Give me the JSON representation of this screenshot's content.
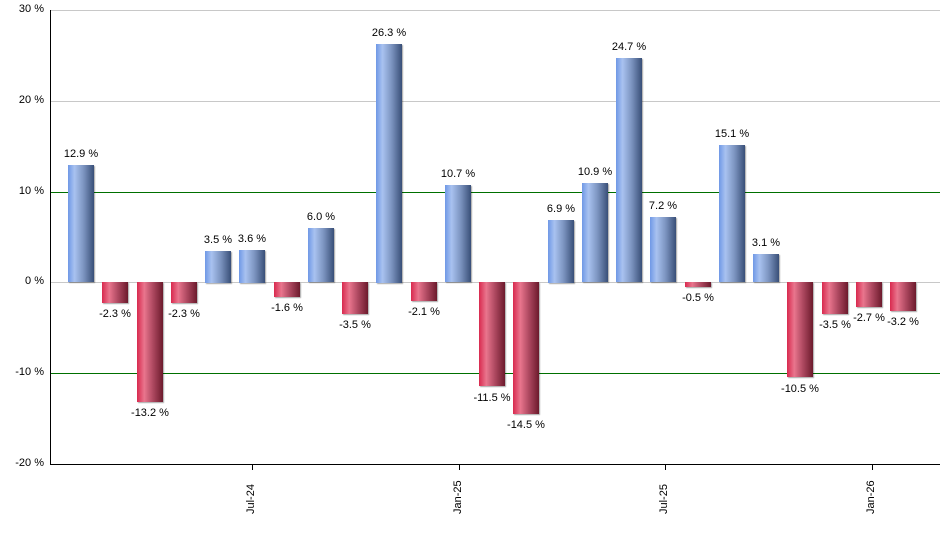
{
  "chart_data": {
    "type": "bar",
    "title": "",
    "xlabel": "",
    "ylabel": "",
    "ylim": [
      -20,
      30
    ],
    "y_ticks": [
      "30 %",
      "20 %",
      "10 %",
      "0 %",
      "-10 %",
      "-20 %"
    ],
    "y_tick_values": [
      30,
      20,
      10,
      0,
      -10,
      -20
    ],
    "x_tick_labels": [
      "Jul-24",
      "Jan-25",
      "Jul-25",
      "Jan-26"
    ],
    "grid": {
      "horizontal": true,
      "gray_lines_at": [
        30,
        20,
        0
      ],
      "green_lines_at": [
        10,
        -10
      ]
    },
    "colors": {
      "positive": "#7c9fe0",
      "negative": "#d8294e",
      "green_reference": "#007000",
      "grid_gray": "#c8c8c8"
    },
    "legend": null,
    "values": [
      12.9,
      -2.3,
      -13.2,
      -2.3,
      3.5,
      3.6,
      -1.6,
      6.0,
      -3.5,
      26.3,
      -2.1,
      10.7,
      -11.5,
      -14.5,
      6.9,
      10.9,
      24.7,
      7.2,
      -0.5,
      15.1,
      3.1,
      -10.5,
      -3.5,
      -2.7,
      -3.2
    ],
    "labels": [
      "12.9 %",
      "-2.3 %",
      "-13.2 %",
      "-2.3 %",
      "3.5 %",
      "3.6 %",
      "-1.6 %",
      "6.0 %",
      "-3.5 %",
      "26.3 %",
      "-2.1 %",
      "10.7 %",
      "-11.5 %",
      "-14.5 %",
      "6.9 %",
      "10.9 %",
      "24.7 %",
      "7.2 %",
      "-0.5 %",
      "15.1 %",
      "3.1 %",
      "-10.5 %",
      "-3.5 %",
      "-2.7 %",
      "-3.2 %"
    ]
  }
}
